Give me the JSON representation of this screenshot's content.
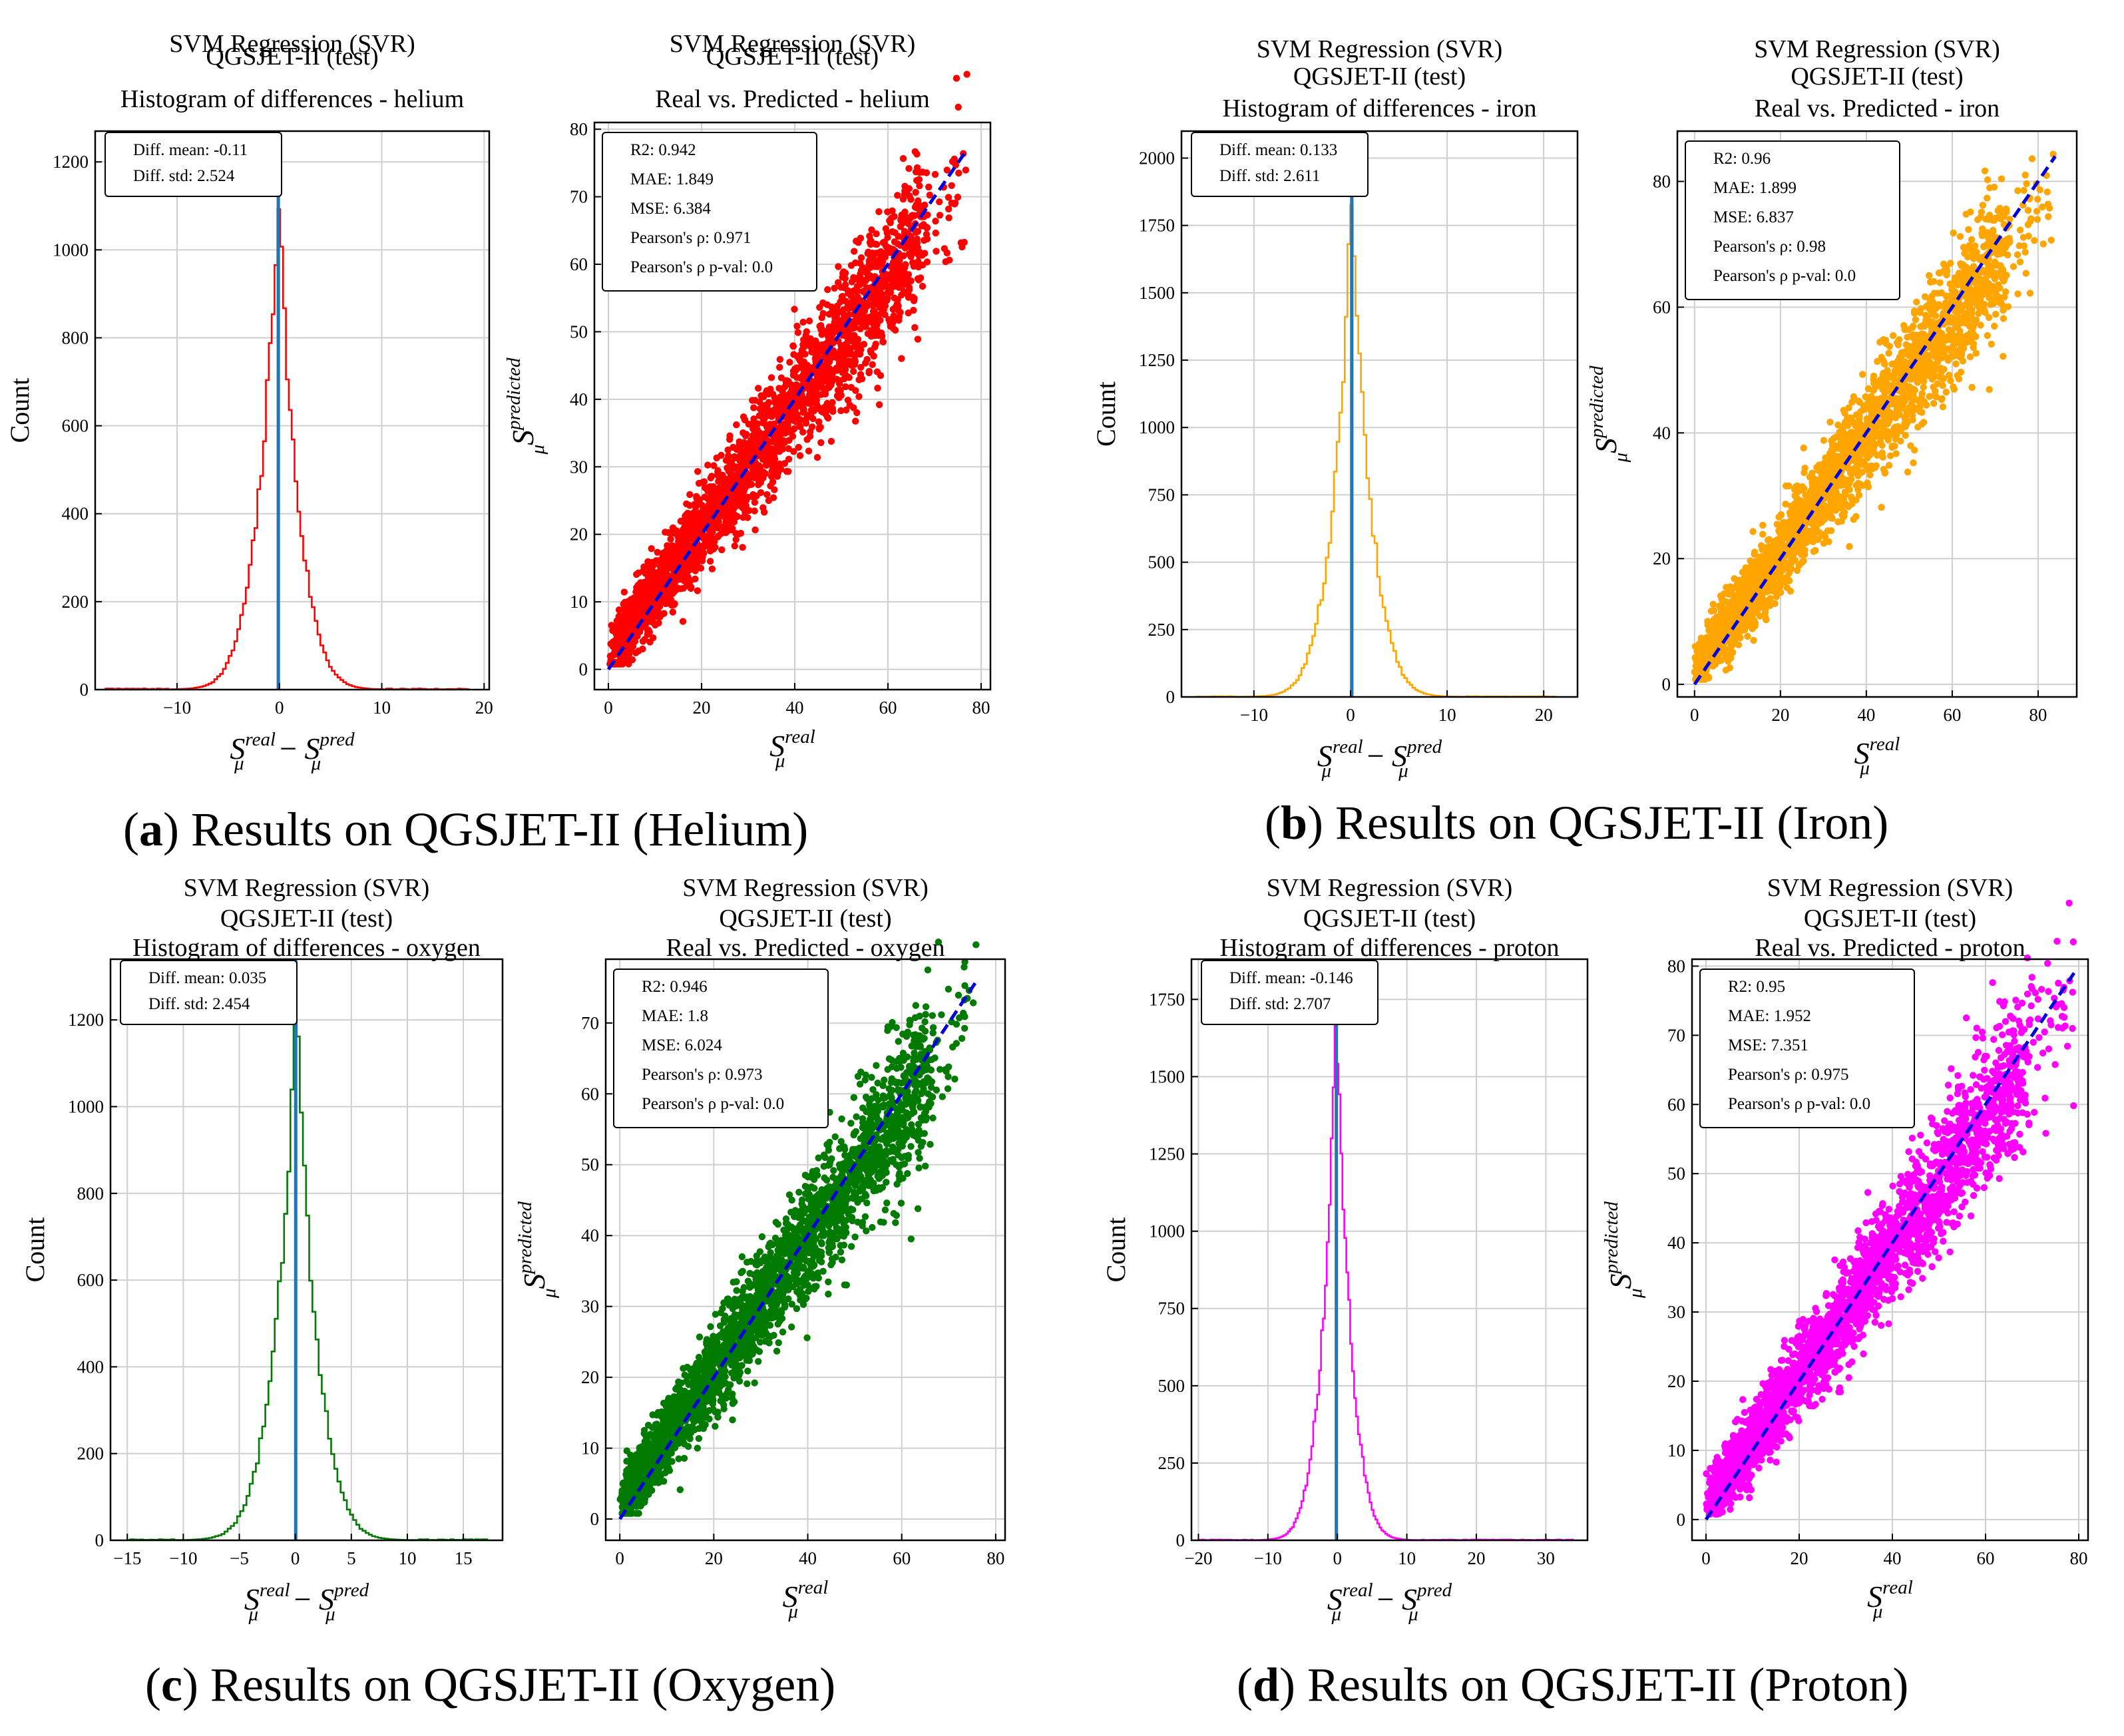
{
  "colors": {
    "helium": "#ff0000",
    "iron": "#ffa500",
    "oxygen": "#007a00",
    "proton": "#ff00ff",
    "fit": "#0000dd",
    "meanline": "#1f77b4"
  },
  "axis_text": {
    "count": "Count",
    "hist_x_main": "S",
    "hist_x_sup1": "real",
    "hist_x_sub": "μ",
    "hist_x_minus": "−",
    "hist_x_sup2": "pred",
    "sc_x_main": "S",
    "sc_x_sup": "real",
    "sc_x_sub": "μ",
    "sc_y_main": "S",
    "sc_y_sup": "predicted",
    "sc_y_sub": "μ"
  },
  "panels": [
    {
      "key": "helium",
      "caption": {
        "paren_open": "(",
        "letter": "a",
        "rest": ") Results on QGSJET-II (Helium)"
      },
      "hist": {
        "title": [
          "SVM Regression (SVR)",
          "QGSJET-II (test)",
          "Histogram of differences - helium"
        ],
        "stats": [
          "Diff. mean: -0.11",
          "Diff. std: 2.524"
        ],
        "xticks": [
          -10,
          0,
          10,
          20
        ],
        "yticks": [
          0,
          200,
          400,
          600,
          800,
          1000,
          1200
        ],
        "xlim": [
          -18,
          20.5
        ],
        "ylim": [
          0,
          1270
        ],
        "peak": 1150,
        "mean": -0.11,
        "std": 2.524,
        "range": [
          -17,
          18.5
        ]
      },
      "scatter": {
        "title": [
          "SVM Regression (SVR)",
          "QGSJET-II (test)",
          "Real vs. Predicted - helium"
        ],
        "stats": [
          "R2: 0.942",
          "MAE: 1.849",
          "MSE: 6.384",
          "Pearson's ρ: 0.971",
          "Pearson's ρ p-val: 0.0"
        ],
        "xticks": [
          0,
          20,
          40,
          60,
          80
        ],
        "yticks": [
          0,
          10,
          20,
          30,
          40,
          50,
          60,
          70,
          80
        ],
        "xlim": [
          -3,
          82
        ],
        "ylim": [
          -3,
          81
        ],
        "fit_end": 77,
        "pts_max": 77
      }
    },
    {
      "key": "iron",
      "caption": {
        "paren_open": "(",
        "letter": "b",
        "rest": ") Results on QGSJET-II (Iron)"
      },
      "hist": {
        "title": [
          "SVM Regression (SVR)",
          "QGSJET-II (test)",
          "Histogram of differences - iron"
        ],
        "stats": [
          "Diff. mean: 0.133",
          "Diff. std: 2.611"
        ],
        "xticks": [
          -10,
          0,
          10,
          20
        ],
        "yticks": [
          0,
          250,
          500,
          750,
          1000,
          1250,
          1500,
          1750,
          2000
        ],
        "xlim": [
          -17.5,
          23.5
        ],
        "ylim": [
          0,
          2100
        ],
        "peak": 1860,
        "mean": 0.133,
        "std": 2.611,
        "range": [
          -16,
          21
        ]
      },
      "scatter": {
        "title": [
          "SVM Regression (SVR)",
          "QGSJET-II (test)",
          "Real vs. Predicted - iron"
        ],
        "stats": [
          "R2: 0.96",
          "MAE: 1.899",
          "MSE: 6.837",
          "Pearson's ρ: 0.98",
          "Pearson's ρ p-val: 0.0"
        ],
        "xticks": [
          0,
          20,
          40,
          60,
          80
        ],
        "yticks": [
          0,
          20,
          40,
          60,
          80
        ],
        "xlim": [
          -4,
          89
        ],
        "ylim": [
          -2,
          88
        ],
        "fit_end": 84,
        "pts_max": 84
      }
    },
    {
      "key": "oxygen",
      "caption": {
        "paren_open": "(",
        "letter": "c",
        "rest": ") Results on QGSJET-II (Oxygen)"
      },
      "hist": {
        "title": [
          "SVM Regression (SVR)",
          "QGSJET-II (test)",
          "Histogram of differences - oxygen"
        ],
        "stats": [
          "Diff. mean: 0.035",
          "Diff. std: 2.454"
        ],
        "xticks": [
          -15,
          -10,
          -5,
          0,
          5,
          10,
          15
        ],
        "yticks": [
          0,
          200,
          400,
          600,
          800,
          1000,
          1200
        ],
        "xlim": [
          -16.5,
          18.5
        ],
        "ylim": [
          0,
          1340
        ],
        "peak": 1250,
        "mean": 0.035,
        "std": 2.454,
        "range": [
          -15,
          17
        ]
      },
      "scatter": {
        "title": [
          "SVM Regression (SVR)",
          "QGSJET-II (test)",
          "Real vs. Predicted - oxygen"
        ],
        "stats": [
          "R2: 0.946",
          "MAE: 1.8",
          "MSE: 6.024",
          "Pearson's ρ: 0.973",
          "Pearson's ρ p-val: 0.0"
        ],
        "xticks": [
          0,
          20,
          40,
          60,
          80
        ],
        "yticks": [
          0,
          10,
          20,
          30,
          40,
          50,
          60,
          70
        ],
        "xlim": [
          -3,
          82
        ],
        "ylim": [
          -3,
          79
        ],
        "fit_end": 76,
        "pts_max": 76
      }
    },
    {
      "key": "proton",
      "caption": {
        "paren_open": "(",
        "letter": "d",
        "rest": ") Results on QGSJET-II (Proton)"
      },
      "hist": {
        "title": [
          "SVM Regression (SVR)",
          "QGSJET-II (test)",
          "Histogram of differences - proton"
        ],
        "stats": [
          "Diff. mean: -0.146",
          "Diff. std: 2.707"
        ],
        "xticks": [
          -20,
          -10,
          0,
          10,
          20,
          30
        ],
        "yticks": [
          0,
          250,
          500,
          750,
          1000,
          1250,
          1500,
          1750
        ],
        "xlim": [
          -21,
          36
        ],
        "ylim": [
          0,
          1880
        ],
        "peak": 1760,
        "mean": -0.146,
        "std": 2.707,
        "range": [
          -20,
          34
        ]
      },
      "scatter": {
        "title": [
          "SVM Regression (SVR)",
          "QGSJET-II (test)",
          "Real vs. Predicted - proton"
        ],
        "stats": [
          "R2: 0.95",
          "MAE: 1.952",
          "MSE: 7.351",
          "Pearson's ρ: 0.975",
          "Pearson's ρ p-val: 0.0"
        ],
        "xticks": [
          0,
          20,
          40,
          60,
          80
        ],
        "yticks": [
          0,
          10,
          20,
          30,
          40,
          50,
          60,
          70,
          80
        ],
        "xlim": [
          -3,
          82
        ],
        "ylim": [
          -3,
          81
        ],
        "fit_end": 79,
        "pts_max": 79
      }
    }
  ],
  "chart_data": [
    {
      "type": "bar",
      "title": "SVM Regression (SVR) QGSJET-II (test) Histogram of differences - helium",
      "xlabel": "S_mu^real - S_mu^pred",
      "ylabel": "Count",
      "xlim": [
        -18,
        20.5
      ],
      "ylim": [
        0,
        1270
      ],
      "series": [
        {
          "name": "helium",
          "mean": -0.11,
          "std": 2.524,
          "peak": 1150
        }
      ]
    },
    {
      "type": "scatter",
      "title": "SVM Regression (SVR) QGSJET-II (test) Real vs. Predicted - helium",
      "xlabel": "S_mu^real",
      "ylabel": "S_mu^predicted",
      "xlim": [
        -3,
        82
      ],
      "ylim": [
        -3,
        81
      ],
      "series": [
        {
          "name": "helium",
          "r2": 0.942,
          "mae": 1.849,
          "mse": 6.384,
          "pearson": 0.971,
          "pval": 0.0
        }
      ]
    },
    {
      "type": "bar",
      "title": "SVM Regression (SVR) QGSJET-II (test) Histogram of differences - iron",
      "xlabel": "S_mu^real - S_mu^pred",
      "ylabel": "Count",
      "xlim": [
        -17.5,
        23.5
      ],
      "ylim": [
        0,
        2100
      ],
      "series": [
        {
          "name": "iron",
          "mean": 0.133,
          "std": 2.611,
          "peak": 1860
        }
      ]
    },
    {
      "type": "scatter",
      "title": "SVM Regression (SVR) QGSJET-II (test) Real vs. Predicted - iron",
      "xlabel": "S_mu^real",
      "ylabel": "S_mu^predicted",
      "xlim": [
        -4,
        89
      ],
      "ylim": [
        -2,
        88
      ],
      "series": [
        {
          "name": "iron",
          "r2": 0.96,
          "mae": 1.899,
          "mse": 6.837,
          "pearson": 0.98,
          "pval": 0.0
        }
      ]
    },
    {
      "type": "bar",
      "title": "SVM Regression (SVR) QGSJET-II (test) Histogram of differences - oxygen",
      "xlabel": "S_mu^real - S_mu^pred",
      "ylabel": "Count",
      "xlim": [
        -16.5,
        18.5
      ],
      "ylim": [
        0,
        1340
      ],
      "series": [
        {
          "name": "oxygen",
          "mean": 0.035,
          "std": 2.454,
          "peak": 1250
        }
      ]
    },
    {
      "type": "scatter",
      "title": "SVM Regression (SVR) QGSJET-II (test) Real vs. Predicted - oxygen",
      "xlabel": "S_mu^real",
      "ylabel": "S_mu^predicted",
      "xlim": [
        -3,
        82
      ],
      "ylim": [
        -3,
        79
      ],
      "series": [
        {
          "name": "oxygen",
          "r2": 0.946,
          "mae": 1.8,
          "mse": 6.024,
          "pearson": 0.973,
          "pval": 0.0
        }
      ]
    },
    {
      "type": "bar",
      "title": "SVM Regression (SVR) QGSJET-II (test) Histogram of differences - proton",
      "xlabel": "S_mu^real - S_mu^pred",
      "ylabel": "Count",
      "xlim": [
        -21,
        36
      ],
      "ylim": [
        0,
        1880
      ],
      "series": [
        {
          "name": "proton",
          "mean": -0.146,
          "std": 2.707,
          "peak": 1760
        }
      ]
    },
    {
      "type": "scatter",
      "title": "SVM Regression (SVR) QGSJET-II (test) Real vs. Predicted - proton",
      "xlabel": "S_mu^real",
      "ylabel": "S_mu^predicted",
      "xlim": [
        -3,
        82
      ],
      "ylim": [
        -3,
        81
      ],
      "series": [
        {
          "name": "proton",
          "r2": 0.95,
          "mae": 1.952,
          "mse": 7.351,
          "pearson": 0.975,
          "pval": 0.0
        }
      ]
    }
  ]
}
